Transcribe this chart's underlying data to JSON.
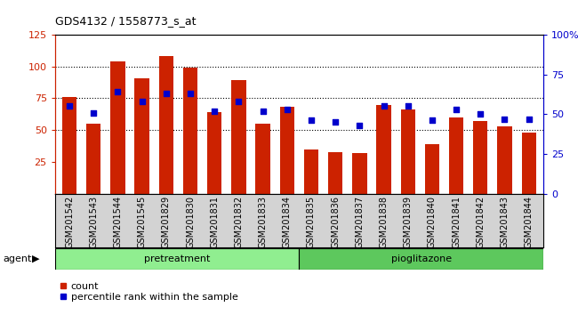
{
  "title": "GDS4132 / 1558773_s_at",
  "samples": [
    "GSM201542",
    "GSM201543",
    "GSM201544",
    "GSM201545",
    "GSM201829",
    "GSM201830",
    "GSM201831",
    "GSM201832",
    "GSM201833",
    "GSM201834",
    "GSM201835",
    "GSM201836",
    "GSM201837",
    "GSM201838",
    "GSM201839",
    "GSM201840",
    "GSM201841",
    "GSM201842",
    "GSM201843",
    "GSM201844"
  ],
  "counts": [
    76,
    55,
    104,
    91,
    108,
    99,
    64,
    89,
    55,
    68,
    35,
    33,
    32,
    70,
    66,
    39,
    60,
    57,
    53,
    48
  ],
  "percentile_ranks": [
    55,
    51,
    64,
    58,
    63,
    63,
    52,
    58,
    52,
    53,
    46,
    45,
    43,
    55,
    55,
    46,
    53,
    50,
    47,
    47
  ],
  "group_colors": [
    "#90EE90",
    "#5DC85D"
  ],
  "bar_color": "#CC2200",
  "dot_color": "#0000CC",
  "left_ylim": [
    0,
    125
  ],
  "right_ylim": [
    0,
    100
  ],
  "grid_values": [
    50,
    75,
    100
  ],
  "legend_count": "count",
  "legend_pct": "percentile rank within the sample",
  "xtick_bg": "#D3D3D3",
  "plot_bg": "#FFFFFF"
}
